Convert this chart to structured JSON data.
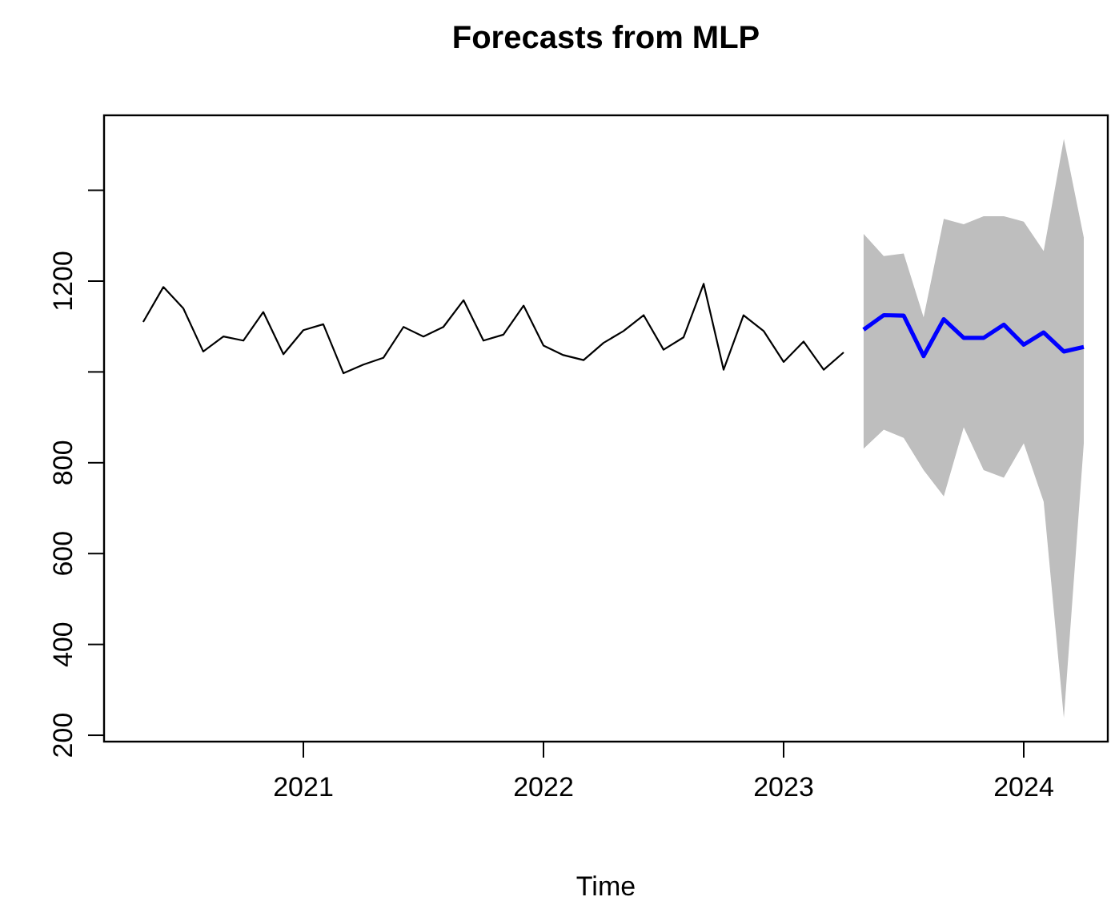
{
  "chart_data": {
    "type": "line",
    "title": "Forecasts from MLP",
    "xlabel": "Time",
    "xlim": [
      2020.17,
      2024.35
    ],
    "xticks": [
      2021,
      2022,
      2023,
      2024
    ],
    "ylim": [
      186,
      1565
    ],
    "yticks": [
      200,
      400,
      600,
      800,
      {
        "value": 1000,
        "label": null
      },
      1200,
      {
        "value": 1400,
        "label": null
      }
    ],
    "grid": false,
    "marker": "none",
    "line_style": "solid",
    "series": [
      {
        "color": "#000000",
        "x": [
          2020.333,
          2020.417,
          2020.5,
          2020.583,
          2020.667,
          2020.75,
          2020.833,
          2020.917,
          2021.0,
          2021.083,
          2021.167,
          2021.25,
          2021.333,
          2021.417,
          2021.5,
          2021.583,
          2021.667,
          2021.75,
          2021.833,
          2021.917,
          2022.0,
          2022.083,
          2022.167,
          2022.25,
          2022.333,
          2022.417,
          2022.5,
          2022.583,
          2022.667,
          2022.75,
          2022.833,
          2022.917,
          2023.0,
          2023.083,
          2023.167,
          2023.25
        ],
        "values": [
          1110,
          1187,
          1140,
          1045,
          1078,
          1069,
          1132,
          1039,
          1092,
          1105,
          997,
          1016,
          1031,
          1099,
          1078,
          1099,
          1158,
          1069,
          1082,
          1146,
          1058,
          1037,
          1026,
          1064,
          1090,
          1125,
          1049,
          1076,
          1194,
          1005,
          1125,
          1090,
          1022,
          1067,
          1005,
          1043
        ]
      },
      {
        "color": "#0000ff",
        "x": [
          2023.333,
          2023.417,
          2023.5,
          2023.583,
          2023.667,
          2023.75,
          2023.833,
          2023.917,
          2024.0,
          2024.083,
          2024.167,
          2024.25
        ],
        "values": [
          1093,
          1125,
          1124,
          1035,
          1116,
          1075,
          1075,
          1104,
          1060,
          1087,
          1045,
          1055
        ],
        "lower": [
          831,
          873,
          855,
          784,
          726,
          878,
          784,
          767,
          843,
          714,
          238,
          843
        ],
        "upper": [
          1304,
          1255,
          1261,
          1120,
          1337,
          1325,
          1343,
          1343,
          1331,
          1266,
          1513,
          1296
        ]
      }
    ]
  }
}
